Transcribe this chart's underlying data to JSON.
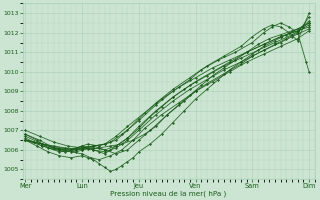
{
  "xlabel": "Pression niveau de la mer( hPa )",
  "ylim": [
    1004.5,
    1013.5
  ],
  "yticks": [
    1005,
    1006,
    1007,
    1008,
    1009,
    1010,
    1011,
    1012,
    1013
  ],
  "xtick_labels": [
    "Mer",
    "Lun",
    "Jeu",
    "Ven",
    "Sam",
    "Dim"
  ],
  "xtick_positions": [
    0.0,
    1.0,
    2.0,
    3.0,
    4.0,
    5.0
  ],
  "background_color": "#cce5d2",
  "grid_color": "#aacfb5",
  "line_color": "#1a5c1a",
  "xlim": [
    -0.05,
    5.1
  ],
  "lines": [
    {
      "x": [
        0,
        0.15,
        0.3,
        0.5,
        0.7,
        0.9,
        1.0,
        1.1,
        1.3,
        1.5,
        1.7,
        1.9,
        2.1,
        2.3,
        2.5,
        2.7,
        2.9,
        3.1,
        3.3,
        3.5,
        3.7,
        3.9,
        4.1,
        4.3,
        4.5,
        4.7,
        4.9,
        5.0
      ],
      "y": [
        1006.5,
        1006.4,
        1006.3,
        1006.2,
        1006.1,
        1006.05,
        1006.0,
        1006.05,
        1006.1,
        1006.2,
        1006.3,
        1006.5,
        1006.8,
        1007.2,
        1007.8,
        1008.3,
        1008.8,
        1009.3,
        1009.8,
        1010.2,
        1010.6,
        1011.0,
        1011.4,
        1011.7,
        1011.9,
        1012.1,
        1012.3,
        1012.5
      ]
    },
    {
      "x": [
        0,
        0.2,
        0.4,
        0.6,
        0.8,
        1.0,
        1.1,
        1.2,
        1.3,
        1.4,
        1.5,
        1.6,
        1.7,
        1.8,
        1.9,
        2.0,
        2.2,
        2.4,
        2.6,
        2.8,
        3.0,
        3.2,
        3.4,
        3.6,
        3.8,
        4.0,
        4.2,
        4.4,
        4.6,
        4.8,
        5.0
      ],
      "y": [
        1006.5,
        1006.2,
        1005.9,
        1005.7,
        1005.6,
        1005.7,
        1005.6,
        1005.5,
        1005.3,
        1005.1,
        1004.9,
        1005.0,
        1005.2,
        1005.4,
        1005.6,
        1005.9,
        1006.3,
        1006.8,
        1007.4,
        1008.0,
        1008.6,
        1009.1,
        1009.6,
        1010.1,
        1010.5,
        1010.9,
        1011.3,
        1011.6,
        1011.9,
        1012.2,
        1012.5
      ]
    },
    {
      "x": [
        0,
        0.3,
        0.6,
        0.9,
        1.0,
        1.1,
        1.2,
        1.3,
        1.4,
        1.5,
        1.6,
        1.8,
        2.0,
        2.2,
        2.4,
        2.6,
        2.8,
        3.0,
        3.3,
        3.6,
        3.9,
        4.2,
        4.5,
        4.8,
        5.0
      ],
      "y": [
        1006.7,
        1006.3,
        1006.0,
        1005.9,
        1006.0,
        1006.1,
        1006.0,
        1005.9,
        1005.8,
        1006.0,
        1006.2,
        1006.6,
        1007.1,
        1007.7,
        1008.2,
        1008.7,
        1009.1,
        1009.5,
        1010.0,
        1010.5,
        1011.0,
        1011.4,
        1011.8,
        1012.1,
        1012.3
      ]
    },
    {
      "x": [
        0,
        0.2,
        0.4,
        0.7,
        1.0,
        1.2,
        1.4,
        1.6,
        1.8,
        2.0,
        2.2,
        2.5,
        2.8,
        3.0,
        3.2,
        3.5,
        3.8,
        4.0,
        4.2,
        4.5,
        4.7,
        5.0
      ],
      "y": [
        1006.8,
        1006.5,
        1006.1,
        1005.9,
        1006.1,
        1006.2,
        1006.0,
        1005.8,
        1006.0,
        1006.5,
        1007.0,
        1007.8,
        1008.5,
        1009.0,
        1009.4,
        1009.9,
        1010.4,
        1010.8,
        1011.1,
        1011.5,
        1011.8,
        1012.2
      ]
    },
    {
      "x": [
        0,
        0.3,
        0.6,
        0.9,
        1.0,
        1.2,
        1.4,
        1.6,
        1.8,
        2.0,
        2.3,
        2.6,
        2.9,
        3.2,
        3.5,
        3.8,
        4.0,
        4.2,
        4.4,
        4.6,
        4.8,
        5.0
      ],
      "y": [
        1006.6,
        1006.2,
        1005.9,
        1006.0,
        1006.1,
        1006.0,
        1005.9,
        1006.1,
        1006.5,
        1007.0,
        1007.8,
        1008.5,
        1009.1,
        1009.6,
        1010.1,
        1010.5,
        1010.8,
        1011.1,
        1011.4,
        1011.7,
        1012.0,
        1012.8
      ]
    },
    {
      "x": [
        0,
        0.3,
        0.5,
        0.8,
        1.0,
        1.1,
        1.3,
        1.5,
        1.7,
        2.0,
        2.3,
        2.6,
        2.9,
        3.1,
        3.4,
        3.7,
        4.0,
        4.2,
        4.35,
        4.5,
        4.65,
        4.8,
        4.95,
        5.0
      ],
      "y": [
        1006.5,
        1006.3,
        1006.1,
        1006.0,
        1006.2,
        1006.3,
        1006.2,
        1006.4,
        1006.8,
        1007.5,
        1008.3,
        1009.0,
        1009.6,
        1010.1,
        1010.6,
        1011.0,
        1011.5,
        1012.0,
        1012.3,
        1012.5,
        1012.3,
        1012.0,
        1010.5,
        1010.0
      ]
    },
    {
      "x": [
        0,
        0.25,
        0.5,
        0.75,
        1.0,
        1.2,
        1.4,
        1.6,
        1.8,
        2.0,
        2.3,
        2.6,
        2.9,
        3.2,
        3.5,
        3.8,
        4.0,
        4.2,
        4.35,
        4.5,
        4.65,
        4.8,
        5.0
      ],
      "y": [
        1007.0,
        1006.7,
        1006.4,
        1006.2,
        1006.1,
        1006.2,
        1006.3,
        1006.5,
        1007.0,
        1007.6,
        1008.4,
        1009.1,
        1009.7,
        1010.3,
        1010.8,
        1011.3,
        1011.8,
        1012.2,
        1012.4,
        1012.3,
        1012.0,
        1011.6,
        1013.0
      ]
    },
    {
      "x": [
        0,
        0.3,
        0.6,
        0.9,
        1.0,
        1.2,
        1.4,
        1.6,
        1.8,
        2.0,
        2.3,
        2.6,
        2.9,
        3.2,
        3.5,
        3.8,
        4.1,
        4.4,
        4.7,
        5.0
      ],
      "y": [
        1006.5,
        1006.2,
        1006.0,
        1006.1,
        1006.2,
        1006.1,
        1006.0,
        1006.2,
        1006.6,
        1007.2,
        1008.0,
        1008.7,
        1009.3,
        1009.8,
        1010.3,
        1010.7,
        1011.1,
        1011.5,
        1011.9,
        1012.4
      ]
    },
    {
      "x": [
        0,
        0.25,
        0.5,
        0.8,
        1.0,
        1.15,
        1.3,
        1.5,
        1.7,
        1.9,
        2.1,
        2.4,
        2.7,
        3.0,
        3.3,
        3.6,
        3.9,
        4.2,
        4.5,
        4.8,
        5.0
      ],
      "y": [
        1006.8,
        1006.5,
        1006.1,
        1005.9,
        1005.8,
        1005.6,
        1005.5,
        1005.7,
        1006.0,
        1006.5,
        1007.1,
        1007.8,
        1008.4,
        1009.0,
        1009.5,
        1010.0,
        1010.5,
        1010.9,
        1011.3,
        1011.7,
        1012.1
      ]
    },
    {
      "x": [
        0,
        0.3,
        0.6,
        0.9,
        1.0,
        1.2,
        1.4,
        1.6,
        1.8,
        2.1,
        2.4,
        2.7,
        3.0,
        3.3,
        3.6,
        3.9,
        4.2,
        4.5,
        4.8,
        5.0
      ],
      "y": [
        1006.5,
        1006.3,
        1006.1,
        1006.0,
        1006.1,
        1006.2,
        1006.3,
        1006.7,
        1007.2,
        1007.9,
        1008.6,
        1009.2,
        1009.7,
        1010.2,
        1010.6,
        1011.0,
        1011.4,
        1011.8,
        1012.1,
        1012.6
      ]
    }
  ]
}
